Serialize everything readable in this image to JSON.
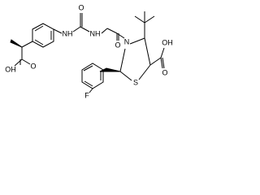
{
  "atoms": {
    "acid_left_oh": "OH",
    "acid_left_o": "O",
    "urea_nh_left": "NH",
    "urea_o": "O",
    "urea_nh_right": "NH",
    "amide_o": "O",
    "ring_n": "N",
    "ring_s": "S",
    "fluorine": "F",
    "acid_right_oh": "OH",
    "acid_right_o": "O"
  }
}
